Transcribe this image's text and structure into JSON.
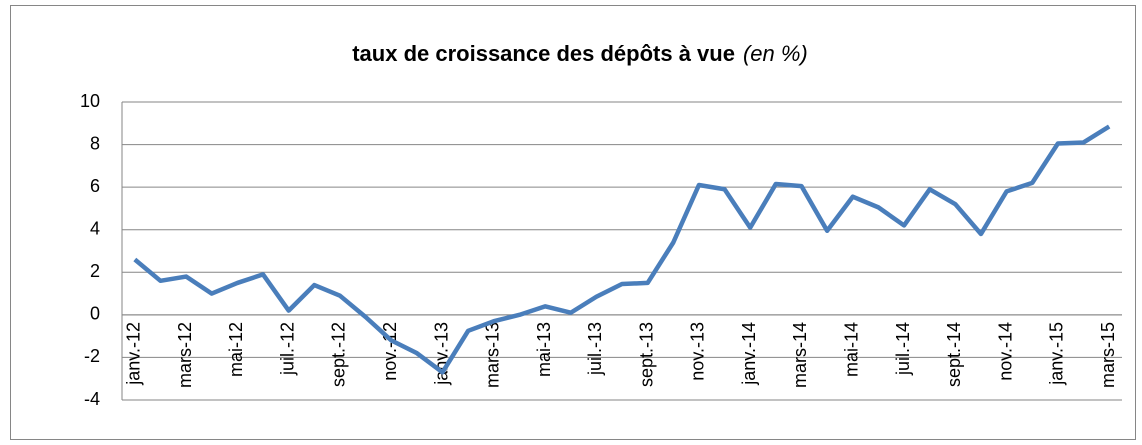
{
  "chart_data": {
    "type": "line",
    "title": "taux de croissance des dépôts à vue",
    "title_note": "(en %)",
    "categories": [
      "janv.-12",
      null,
      "mars-12",
      null,
      "mai-12",
      null,
      "juil.-12",
      null,
      "sept.-12",
      null,
      "nov.-12",
      null,
      "janv.-13",
      null,
      "mars-13",
      null,
      "mai-13",
      null,
      "juil.-13",
      null,
      "sept.-13",
      null,
      "nov.-13",
      null,
      "janv.-14",
      null,
      "mars-14",
      null,
      "mai-14",
      null,
      "juil.-14",
      null,
      "sept.-14",
      null,
      "nov.-14",
      null,
      "janv.-15",
      null,
      "mars-15"
    ],
    "series": [
      {
        "color": "#4a7ebb",
        "values": [
          2.6,
          1.6,
          1.8,
          1.0,
          1.5,
          1.9,
          0.2,
          1.4,
          0.9,
          -0.1,
          -1.2,
          -1.8,
          -2.7,
          -0.75,
          -0.3,
          0.0,
          0.4,
          0.1,
          0.85,
          1.45,
          1.5,
          3.4,
          6.1,
          5.9,
          4.1,
          6.15,
          6.05,
          3.95,
          5.55,
          5.05,
          4.2,
          5.9,
          5.2,
          3.8,
          5.8,
          6.2,
          8.05,
          8.1,
          8.85
        ]
      }
    ],
    "ylim": [
      -4,
      10
    ],
    "yticks": [
      -4,
      -2,
      0,
      2,
      4,
      6,
      8,
      10
    ],
    "grid": true
  }
}
